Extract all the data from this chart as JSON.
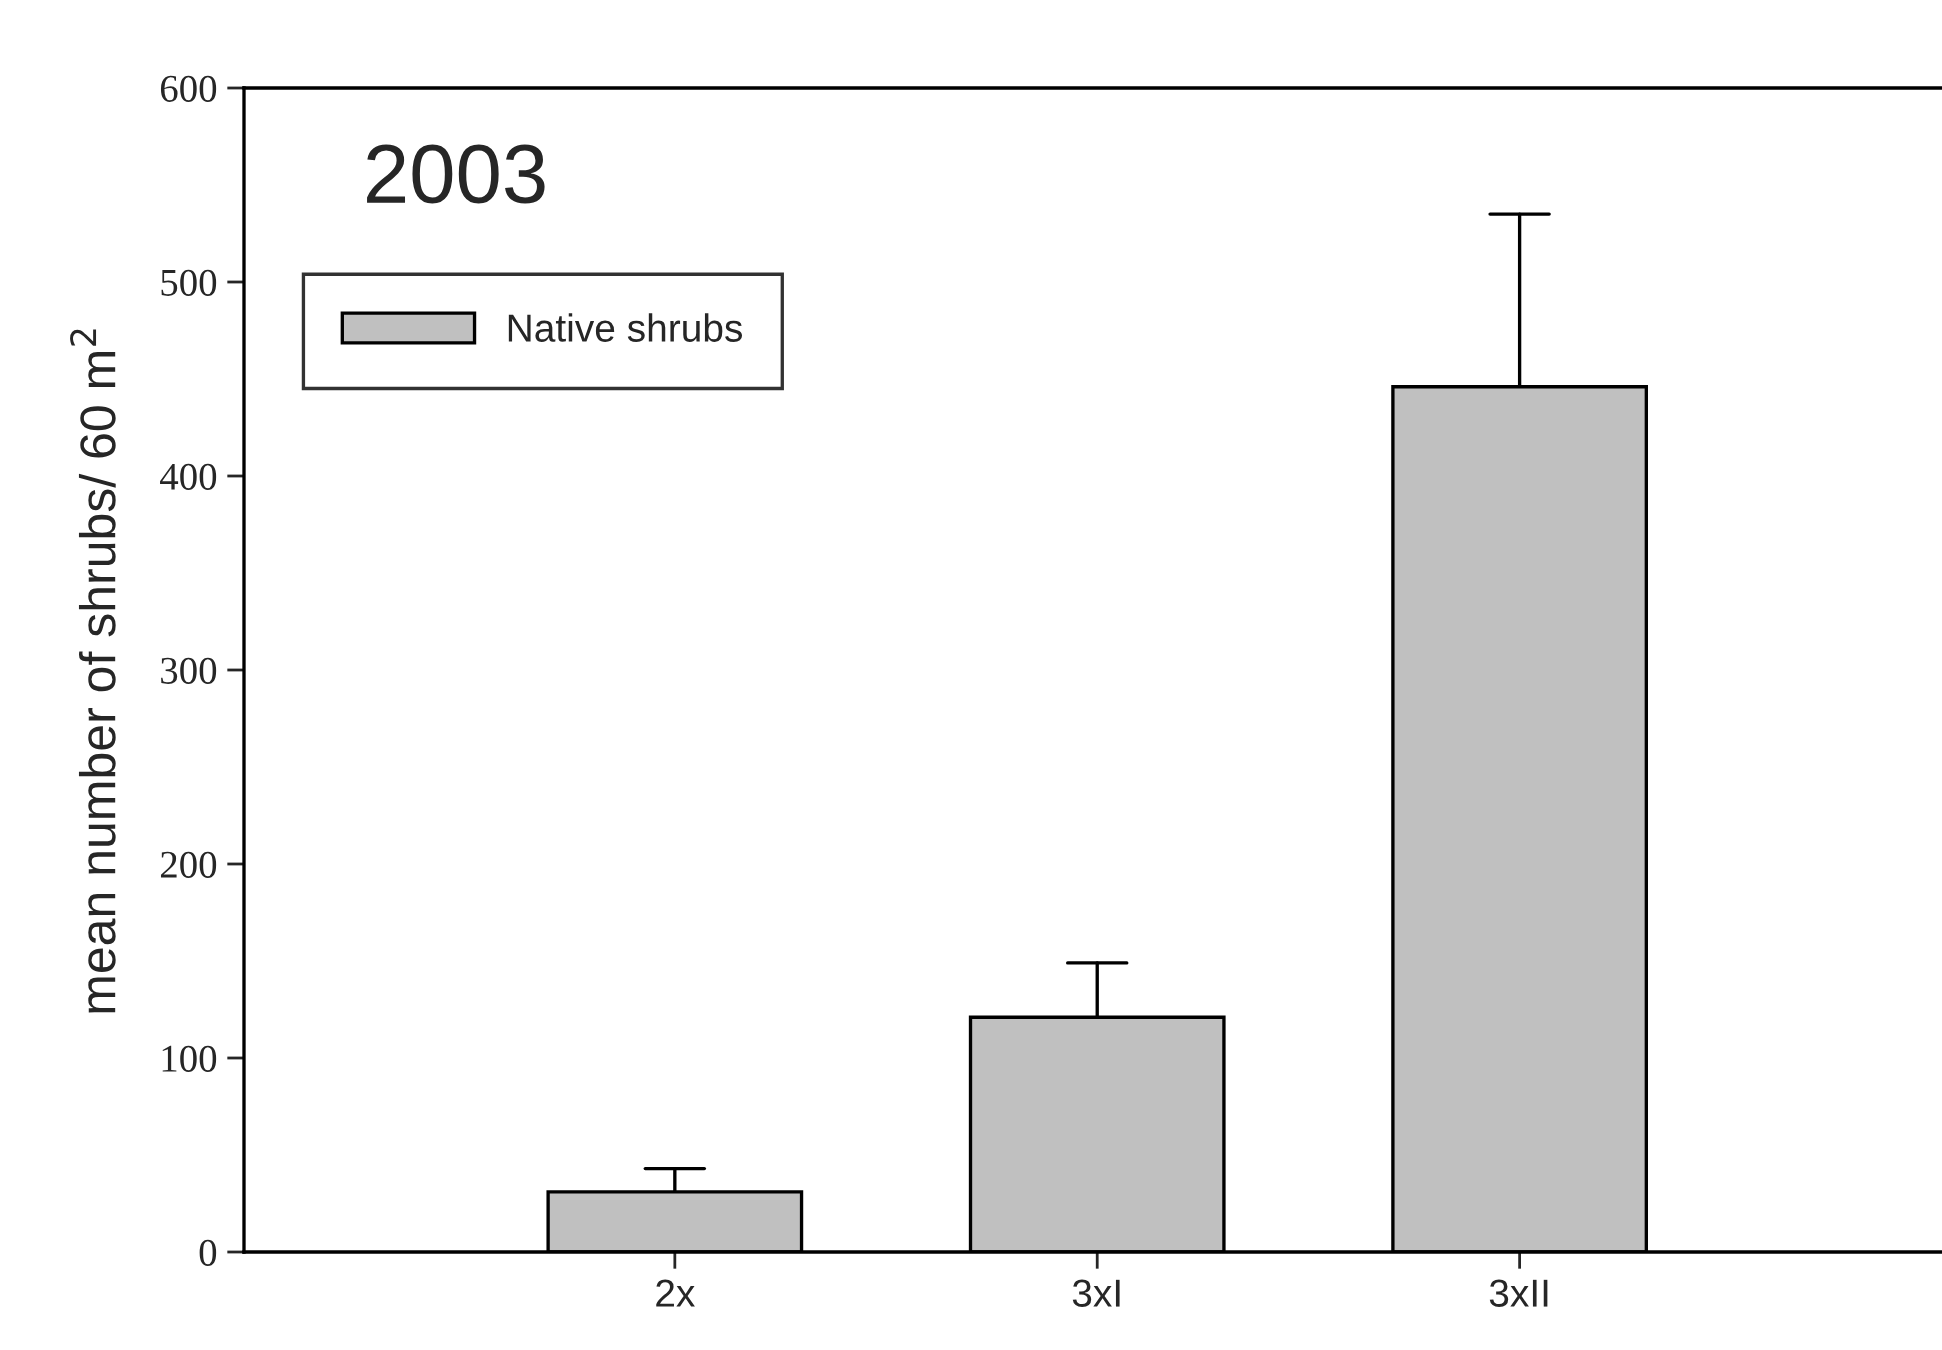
{
  "chart_data": {
    "type": "bar",
    "title": "2003",
    "ylabel": "mean number of shrubs/ 60 m$^{2}$",
    "categories": [
      "2x",
      "3xI",
      "3xII"
    ],
    "series": [
      {
        "name": "Native shrubs",
        "color": "#c0c0c0",
        "values": [
          31,
          121,
          446
        ],
        "errors": [
          [
            31,
            43
          ],
          [
            121,
            149
          ],
          [
            446,
            535
          ]
        ]
      }
    ],
    "ylim": [
      0,
      600
    ],
    "yticks": [
      0,
      100,
      200,
      300,
      400,
      500,
      600
    ],
    "grid": false,
    "legend": "top left"
  }
}
